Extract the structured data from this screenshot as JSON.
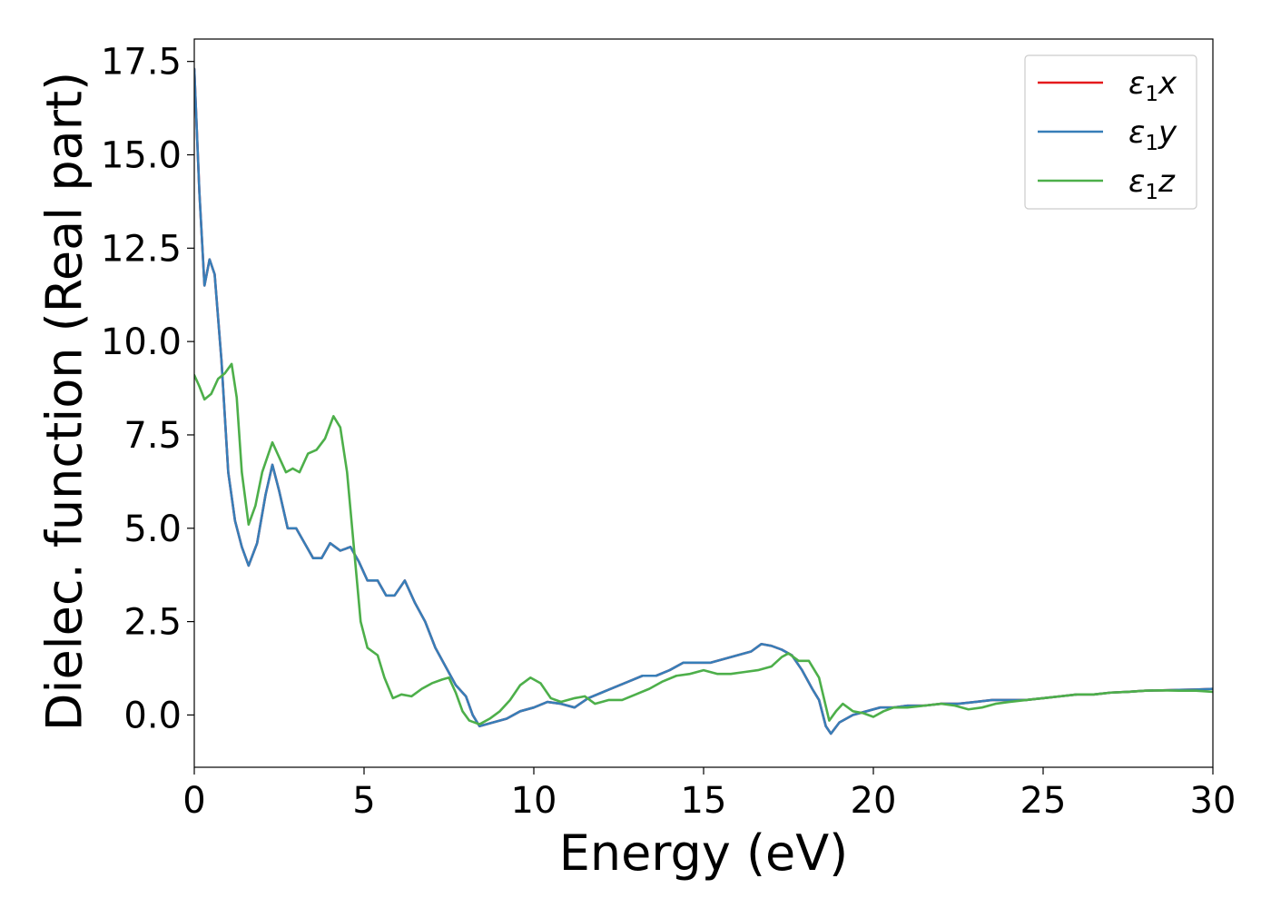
{
  "chart_data": {
    "type": "line",
    "title": "",
    "xlabel": "Energy (eV)",
    "ylabel": "Dielec. function (Real part)",
    "xlim": [
      0,
      30
    ],
    "ylim": [
      -1.4,
      18.1
    ],
    "x_ticks": [
      0,
      5,
      10,
      15,
      20,
      25,
      30
    ],
    "x_tick_labels": [
      "0",
      "5",
      "10",
      "15",
      "20",
      "25",
      "30"
    ],
    "y_ticks": [
      0,
      2.5,
      5,
      7.5,
      10,
      12.5,
      15,
      17.5
    ],
    "y_tick_labels": [
      "0.0",
      "2.5",
      "5.0",
      "7.5",
      "10.0",
      "12.5",
      "15.0",
      "17.5"
    ],
    "grid": false,
    "legend_position": "top-right",
    "colors": {
      "x": "#e41a1c",
      "y": "#377eb8",
      "z": "#4daf4a"
    },
    "series": [
      {
        "name": "ε1x",
        "legend_main": "ε",
        "legend_sub": "1",
        "legend_var": "x",
        "color": "#e41a1c",
        "points": [
          [
            0,
            17.3
          ],
          [
            0.15,
            14.0
          ],
          [
            0.3,
            11.5
          ],
          [
            0.45,
            12.2
          ],
          [
            0.6,
            11.8
          ],
          [
            0.8,
            9.5
          ],
          [
            1.0,
            6.5
          ],
          [
            1.2,
            5.2
          ],
          [
            1.4,
            4.5
          ],
          [
            1.6,
            4.0
          ],
          [
            1.85,
            4.6
          ],
          [
            2.1,
            5.9
          ],
          [
            2.3,
            6.7
          ],
          [
            2.5,
            6.0
          ],
          [
            2.75,
            5.0
          ],
          [
            3.0,
            5.0
          ],
          [
            3.25,
            4.6
          ],
          [
            3.5,
            4.2
          ],
          [
            3.75,
            4.2
          ],
          [
            4.0,
            4.6
          ],
          [
            4.3,
            4.4
          ],
          [
            4.6,
            4.5
          ],
          [
            4.85,
            4.1
          ],
          [
            5.1,
            3.6
          ],
          [
            5.4,
            3.6
          ],
          [
            5.65,
            3.2
          ],
          [
            5.9,
            3.2
          ],
          [
            6.2,
            3.6
          ],
          [
            6.5,
            3.0
          ],
          [
            6.8,
            2.5
          ],
          [
            7.1,
            1.8
          ],
          [
            7.4,
            1.3
          ],
          [
            7.7,
            0.8
          ],
          [
            8.0,
            0.5
          ],
          [
            8.2,
            0.0
          ],
          [
            8.4,
            -0.3
          ],
          [
            8.8,
            -0.2
          ],
          [
            9.2,
            -0.1
          ],
          [
            9.6,
            0.1
          ],
          [
            10.0,
            0.2
          ],
          [
            10.4,
            0.35
          ],
          [
            10.8,
            0.3
          ],
          [
            11.2,
            0.2
          ],
          [
            11.6,
            0.45
          ],
          [
            12.0,
            0.6
          ],
          [
            12.4,
            0.75
          ],
          [
            12.8,
            0.9
          ],
          [
            13.2,
            1.05
          ],
          [
            13.6,
            1.05
          ],
          [
            14.0,
            1.2
          ],
          [
            14.4,
            1.4
          ],
          [
            14.8,
            1.4
          ],
          [
            15.2,
            1.4
          ],
          [
            15.6,
            1.5
          ],
          [
            16.0,
            1.6
          ],
          [
            16.4,
            1.7
          ],
          [
            16.7,
            1.9
          ],
          [
            17.0,
            1.85
          ],
          [
            17.3,
            1.75
          ],
          [
            17.6,
            1.6
          ],
          [
            17.9,
            1.2
          ],
          [
            18.2,
            0.7
          ],
          [
            18.4,
            0.4
          ],
          [
            18.6,
            -0.3
          ],
          [
            18.75,
            -0.5
          ],
          [
            19.0,
            -0.2
          ],
          [
            19.4,
            0.0
          ],
          [
            19.8,
            0.1
          ],
          [
            20.2,
            0.2
          ],
          [
            20.6,
            0.2
          ],
          [
            21.0,
            0.25
          ],
          [
            21.5,
            0.25
          ],
          [
            22.0,
            0.3
          ],
          [
            22.5,
            0.3
          ],
          [
            23.0,
            0.35
          ],
          [
            23.5,
            0.4
          ],
          [
            24.0,
            0.4
          ],
          [
            24.5,
            0.4
          ],
          [
            25.0,
            0.45
          ],
          [
            25.5,
            0.5
          ],
          [
            26.0,
            0.55
          ],
          [
            26.5,
            0.55
          ],
          [
            27.0,
            0.6
          ],
          [
            27.5,
            0.62
          ],
          [
            28.0,
            0.65
          ],
          [
            28.5,
            0.66
          ],
          [
            29.0,
            0.67
          ],
          [
            29.5,
            0.68
          ],
          [
            30.0,
            0.7
          ]
        ]
      },
      {
        "name": "ε1y",
        "legend_main": "ε",
        "legend_sub": "1",
        "legend_var": "y",
        "color": "#377eb8",
        "points": [
          [
            0,
            17.3
          ],
          [
            0.15,
            14.0
          ],
          [
            0.3,
            11.5
          ],
          [
            0.45,
            12.2
          ],
          [
            0.6,
            11.8
          ],
          [
            0.8,
            9.5
          ],
          [
            1.0,
            6.5
          ],
          [
            1.2,
            5.2
          ],
          [
            1.4,
            4.5
          ],
          [
            1.6,
            4.0
          ],
          [
            1.85,
            4.6
          ],
          [
            2.1,
            5.9
          ],
          [
            2.3,
            6.7
          ],
          [
            2.5,
            6.0
          ],
          [
            2.75,
            5.0
          ],
          [
            3.0,
            5.0
          ],
          [
            3.25,
            4.6
          ],
          [
            3.5,
            4.2
          ],
          [
            3.75,
            4.2
          ],
          [
            4.0,
            4.6
          ],
          [
            4.3,
            4.4
          ],
          [
            4.6,
            4.5
          ],
          [
            4.85,
            4.1
          ],
          [
            5.1,
            3.6
          ],
          [
            5.4,
            3.6
          ],
          [
            5.65,
            3.2
          ],
          [
            5.9,
            3.2
          ],
          [
            6.2,
            3.6
          ],
          [
            6.5,
            3.0
          ],
          [
            6.8,
            2.5
          ],
          [
            7.1,
            1.8
          ],
          [
            7.4,
            1.3
          ],
          [
            7.7,
            0.8
          ],
          [
            8.0,
            0.5
          ],
          [
            8.2,
            0.0
          ],
          [
            8.4,
            -0.3
          ],
          [
            8.8,
            -0.2
          ],
          [
            9.2,
            -0.1
          ],
          [
            9.6,
            0.1
          ],
          [
            10.0,
            0.2
          ],
          [
            10.4,
            0.35
          ],
          [
            10.8,
            0.3
          ],
          [
            11.2,
            0.2
          ],
          [
            11.6,
            0.45
          ],
          [
            12.0,
            0.6
          ],
          [
            12.4,
            0.75
          ],
          [
            12.8,
            0.9
          ],
          [
            13.2,
            1.05
          ],
          [
            13.6,
            1.05
          ],
          [
            14.0,
            1.2
          ],
          [
            14.4,
            1.4
          ],
          [
            14.8,
            1.4
          ],
          [
            15.2,
            1.4
          ],
          [
            15.6,
            1.5
          ],
          [
            16.0,
            1.6
          ],
          [
            16.4,
            1.7
          ],
          [
            16.7,
            1.9
          ],
          [
            17.0,
            1.85
          ],
          [
            17.3,
            1.75
          ],
          [
            17.6,
            1.6
          ],
          [
            17.9,
            1.2
          ],
          [
            18.2,
            0.7
          ],
          [
            18.4,
            0.4
          ],
          [
            18.6,
            -0.3
          ],
          [
            18.75,
            -0.5
          ],
          [
            19.0,
            -0.2
          ],
          [
            19.4,
            0.0
          ],
          [
            19.8,
            0.1
          ],
          [
            20.2,
            0.2
          ],
          [
            20.6,
            0.2
          ],
          [
            21.0,
            0.25
          ],
          [
            21.5,
            0.25
          ],
          [
            22.0,
            0.3
          ],
          [
            22.5,
            0.3
          ],
          [
            23.0,
            0.35
          ],
          [
            23.5,
            0.4
          ],
          [
            24.0,
            0.4
          ],
          [
            24.5,
            0.4
          ],
          [
            25.0,
            0.45
          ],
          [
            25.5,
            0.5
          ],
          [
            26.0,
            0.55
          ],
          [
            26.5,
            0.55
          ],
          [
            27.0,
            0.6
          ],
          [
            27.5,
            0.62
          ],
          [
            28.0,
            0.65
          ],
          [
            28.5,
            0.66
          ],
          [
            29.0,
            0.67
          ],
          [
            29.5,
            0.68
          ],
          [
            30.0,
            0.7
          ]
        ]
      },
      {
        "name": "ε1z",
        "legend_main": "ε",
        "legend_sub": "1",
        "legend_var": "z",
        "color": "#4daf4a",
        "points": [
          [
            0,
            9.1
          ],
          [
            0.15,
            8.8
          ],
          [
            0.3,
            8.45
          ],
          [
            0.5,
            8.6
          ],
          [
            0.7,
            9.0
          ],
          [
            0.9,
            9.15
          ],
          [
            1.1,
            9.4
          ],
          [
            1.25,
            8.5
          ],
          [
            1.4,
            6.5
          ],
          [
            1.6,
            5.1
          ],
          [
            1.8,
            5.6
          ],
          [
            2.0,
            6.5
          ],
          [
            2.3,
            7.3
          ],
          [
            2.5,
            6.9
          ],
          [
            2.7,
            6.5
          ],
          [
            2.9,
            6.6
          ],
          [
            3.1,
            6.5
          ],
          [
            3.35,
            7.0
          ],
          [
            3.6,
            7.1
          ],
          [
            3.85,
            7.4
          ],
          [
            4.1,
            8.0
          ],
          [
            4.3,
            7.7
          ],
          [
            4.5,
            6.5
          ],
          [
            4.7,
            4.5
          ],
          [
            4.9,
            2.5
          ],
          [
            5.1,
            1.8
          ],
          [
            5.4,
            1.6
          ],
          [
            5.6,
            1.0
          ],
          [
            5.85,
            0.45
          ],
          [
            6.1,
            0.55
          ],
          [
            6.4,
            0.5
          ],
          [
            6.7,
            0.7
          ],
          [
            7.0,
            0.85
          ],
          [
            7.3,
            0.95
          ],
          [
            7.5,
            1.0
          ],
          [
            7.7,
            0.6
          ],
          [
            7.9,
            0.1
          ],
          [
            8.1,
            -0.15
          ],
          [
            8.4,
            -0.25
          ],
          [
            8.7,
            -0.1
          ],
          [
            9.0,
            0.1
          ],
          [
            9.3,
            0.4
          ],
          [
            9.6,
            0.8
          ],
          [
            9.9,
            1.0
          ],
          [
            10.2,
            0.85
          ],
          [
            10.5,
            0.45
          ],
          [
            10.8,
            0.35
          ],
          [
            11.2,
            0.45
          ],
          [
            11.5,
            0.5
          ],
          [
            11.8,
            0.3
          ],
          [
            12.2,
            0.4
          ],
          [
            12.6,
            0.4
          ],
          [
            13.0,
            0.55
          ],
          [
            13.4,
            0.7
          ],
          [
            13.8,
            0.9
          ],
          [
            14.2,
            1.05
          ],
          [
            14.6,
            1.1
          ],
          [
            15.0,
            1.2
          ],
          [
            15.4,
            1.1
          ],
          [
            15.8,
            1.1
          ],
          [
            16.2,
            1.15
          ],
          [
            16.6,
            1.2
          ],
          [
            17.0,
            1.3
          ],
          [
            17.3,
            1.55
          ],
          [
            17.5,
            1.65
          ],
          [
            17.8,
            1.45
          ],
          [
            18.1,
            1.45
          ],
          [
            18.4,
            1.0
          ],
          [
            18.7,
            -0.15
          ],
          [
            18.9,
            0.1
          ],
          [
            19.1,
            0.3
          ],
          [
            19.4,
            0.1
          ],
          [
            19.7,
            0.05
          ],
          [
            20.0,
            -0.05
          ],
          [
            20.3,
            0.1
          ],
          [
            20.6,
            0.2
          ],
          [
            21.0,
            0.2
          ],
          [
            21.5,
            0.25
          ],
          [
            22.0,
            0.3
          ],
          [
            22.4,
            0.25
          ],
          [
            22.8,
            0.15
          ],
          [
            23.2,
            0.2
          ],
          [
            23.6,
            0.3
          ],
          [
            24.0,
            0.35
          ],
          [
            24.5,
            0.4
          ],
          [
            25.0,
            0.45
          ],
          [
            25.5,
            0.5
          ],
          [
            26.0,
            0.55
          ],
          [
            26.5,
            0.55
          ],
          [
            27.0,
            0.6
          ],
          [
            27.5,
            0.62
          ],
          [
            28.0,
            0.65
          ],
          [
            28.5,
            0.66
          ],
          [
            29.0,
            0.65
          ],
          [
            29.5,
            0.65
          ],
          [
            30.0,
            0.62
          ]
        ]
      }
    ]
  }
}
